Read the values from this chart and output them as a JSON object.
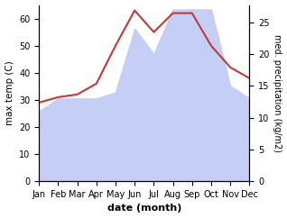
{
  "months": [
    "Jan",
    "Feb",
    "Mar",
    "Apr",
    "May",
    "Jun",
    "Jul",
    "Aug",
    "Sep",
    "Oct",
    "Nov",
    "Dec"
  ],
  "month_indices": [
    1,
    2,
    3,
    4,
    5,
    6,
    7,
    8,
    9,
    10,
    11,
    12
  ],
  "temp": [
    29,
    31,
    32,
    36,
    50,
    63,
    55,
    62,
    62,
    50,
    42,
    38
  ],
  "precip": [
    11,
    13,
    13,
    13,
    14,
    24,
    20,
    27,
    27,
    27,
    15,
    13
  ],
  "temp_color": "#c0393b",
  "precip_fill_color": "#c5cef5",
  "precip_line_color": "#aab4e8",
  "temp_ylim": [
    0,
    65
  ],
  "precip_ylim": [
    0,
    27.7
  ],
  "temp_yticks": [
    0,
    10,
    20,
    30,
    40,
    50,
    60
  ],
  "precip_yticks": [
    0,
    5,
    10,
    15,
    20,
    25
  ],
  "ylabel_left": "max temp (C)",
  "ylabel_right": "med. precipitation (kg/m2)",
  "xlabel": "date (month)",
  "figsize": [
    3.18,
    2.42
  ],
  "dpi": 100
}
